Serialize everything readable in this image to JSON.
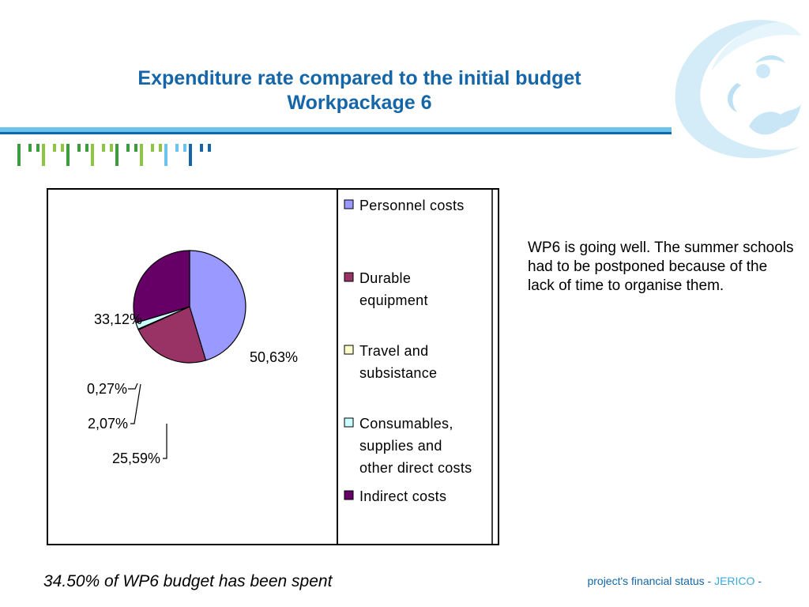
{
  "header": {
    "title_line1": "Expenditure rate compared to the initial budget",
    "title_line2": "Workpackage 6"
  },
  "colors": {
    "title": "#1466a8",
    "rule_light": "#6cc3ec",
    "rule_dark": "#1466a8",
    "tick_greens": [
      "#3d9c3d",
      "#8cc63f"
    ],
    "tick_blues": [
      "#6cc3ec",
      "#1466a8"
    ]
  },
  "chart_data": {
    "type": "pie",
    "title": "",
    "series": [
      {
        "name": "Personnel costs",
        "value": 50.63,
        "label": "50,63%",
        "color": "#9999ff"
      },
      {
        "name": "Durable equipment",
        "value": 25.59,
        "label": "25,59%",
        "color": "#993366"
      },
      {
        "name": "Travel and subsistance",
        "value": 0.27,
        "label": "0,27%",
        "color": "#ffffcc"
      },
      {
        "name": "Consumables, supplies and other direct costs",
        "value": 2.07,
        "label": "2,07%",
        "color": "#ccffff"
      },
      {
        "name": "Indirect costs",
        "value": 33.12,
        "label": "33,12%",
        "color": "#660066"
      }
    ],
    "legend": {
      "position": "right",
      "entries": [
        {
          "lines": [
            "Personnel costs"
          ]
        },
        {
          "lines": [
            "Durable",
            "equipment"
          ]
        },
        {
          "lines": [
            "Travel and",
            "subsistance"
          ]
        },
        {
          "lines": [
            "Consumables,",
            "supplies and",
            "other direct costs"
          ]
        },
        {
          "lines": [
            "Indirect costs"
          ]
        }
      ]
    }
  },
  "comment": "WP6 is going well. The summer schools had to be postponed because of the lack of time to organise them.",
  "summary": "34.50% of WP6 budget has been spent",
  "footer": {
    "prefix": "project's financial status - ",
    "brand": "JERICO",
    "suffix": " -"
  }
}
